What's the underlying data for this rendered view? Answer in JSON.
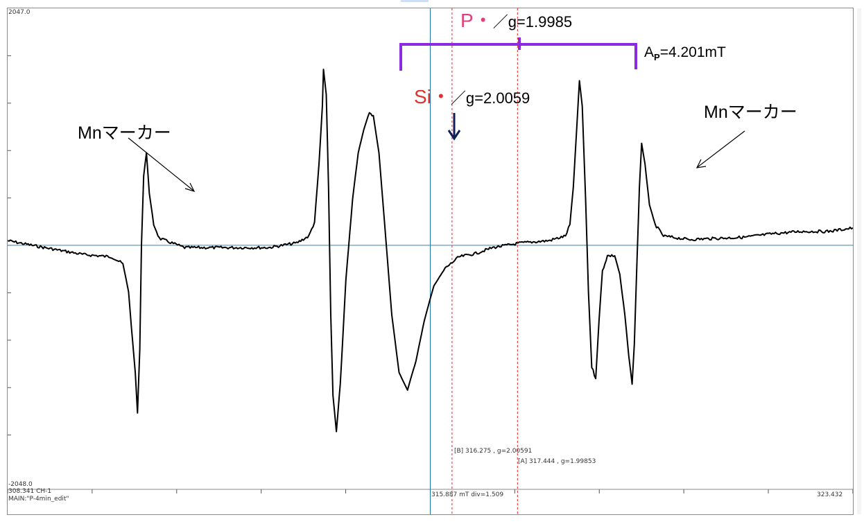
{
  "chart_data": {
    "type": "line",
    "xlim": [
      308.341,
      323.432
    ],
    "ylim": [
      -2048.0,
      2047.0
    ],
    "x_unit": "mT",
    "div": "1.509",
    "series": [
      {
        "color": "#000000",
        "points": [
          [
            308.341,
            40
          ],
          [
            309.0,
            -20
          ],
          [
            309.7,
            -80
          ],
          [
            310.2,
            -100
          ],
          [
            310.4,
            -160
          ],
          [
            310.5,
            -400
          ],
          [
            310.55,
            -700
          ],
          [
            310.62,
            -1100
          ],
          [
            310.66,
            -1450
          ],
          [
            310.7,
            -900
          ],
          [
            310.73,
            0
          ],
          [
            310.77,
            600
          ],
          [
            310.82,
            800
          ],
          [
            310.87,
            450
          ],
          [
            310.95,
            180
          ],
          [
            311.05,
            60
          ],
          [
            311.5,
            -20
          ],
          [
            312.0,
            -20
          ],
          [
            312.5,
            -20
          ],
          [
            313.0,
            -20
          ],
          [
            313.5,
            20
          ],
          [
            313.72,
            80
          ],
          [
            313.82,
            200
          ],
          [
            313.9,
            700
          ],
          [
            313.96,
            1200
          ],
          [
            313.98,
            1520
          ],
          [
            314.03,
            1300
          ],
          [
            314.07,
            500
          ],
          [
            314.11,
            -600
          ],
          [
            314.15,
            -1300
          ],
          [
            314.21,
            -1610
          ],
          [
            314.28,
            -1200
          ],
          [
            314.38,
            -300
          ],
          [
            314.5,
            400
          ],
          [
            314.6,
            800
          ],
          [
            314.7,
            1000
          ],
          [
            314.8,
            1150
          ],
          [
            314.87,
            1120
          ],
          [
            314.97,
            800
          ],
          [
            315.07,
            200
          ],
          [
            315.2,
            -600
          ],
          [
            315.33,
            -1100
          ],
          [
            315.48,
            -1250
          ],
          [
            315.63,
            -1000
          ],
          [
            315.78,
            -650
          ],
          [
            315.95,
            -350
          ],
          [
            316.15,
            -200
          ],
          [
            316.4,
            -100
          ],
          [
            316.7,
            -70
          ],
          [
            317.0,
            -20
          ],
          [
            317.5,
            20
          ],
          [
            318.0,
            40
          ],
          [
            318.3,
            80
          ],
          [
            318.38,
            180
          ],
          [
            318.44,
            500
          ],
          [
            318.5,
            1000
          ],
          [
            318.55,
            1420
          ],
          [
            318.6,
            1200
          ],
          [
            318.66,
            400
          ],
          [
            318.71,
            -400
          ],
          [
            318.77,
            -1050
          ],
          [
            318.84,
            -1150
          ],
          [
            318.9,
            -650
          ],
          [
            318.96,
            -220
          ],
          [
            319.05,
            -90
          ],
          [
            319.18,
            -90
          ],
          [
            319.27,
            -250
          ],
          [
            319.36,
            -600
          ],
          [
            319.43,
            -950
          ],
          [
            319.49,
            -1200
          ],
          [
            319.53,
            -850
          ],
          [
            319.58,
            -100
          ],
          [
            319.62,
            500
          ],
          [
            319.66,
            880
          ],
          [
            319.72,
            700
          ],
          [
            319.8,
            350
          ],
          [
            319.9,
            180
          ],
          [
            320.05,
            80
          ],
          [
            320.5,
            50
          ],
          [
            321.0,
            60
          ],
          [
            321.5,
            70
          ],
          [
            322.0,
            100
          ],
          [
            322.5,
            120
          ],
          [
            323.0,
            120
          ],
          [
            323.432,
            150
          ]
        ]
      }
    ],
    "baseline_y": 0,
    "cursor_x": 315.887,
    "markers": [
      {
        "label": "[B]  316.275 , g=2.00591",
        "x": 316.275
      },
      {
        "label": "[A]  317.444 , g=1.99853",
        "x": 317.444
      }
    ],
    "ytick_step": 409.5,
    "xtick_step": 1.509,
    "x_min_label": "308.341  CH-1",
    "x_mid_label": "315.887  mT  div=1.509",
    "x_max_label": "323.432",
    "y_max_label": "2047.0",
    "y_min_label": "-2048.0",
    "footer": "MAIN:\"P-4min_edit\""
  },
  "annotations": {
    "p_radical": "P・",
    "p_g": "／g=1.9985",
    "ap_prefix": "A",
    "ap_sub": "P",
    "ap_value": "=4.201mT",
    "si_radical": "Si・",
    "si_g": "／g=2.0059",
    "mn_left": "Mnマーカー",
    "mn_right": "Mnマーカー"
  },
  "colors": {
    "curve": "#000000",
    "cursor": "#1a6fa3",
    "baseline": "#2f86b8",
    "marker_lines": "#e02020",
    "p_label": "#e0407a",
    "si_label": "#e03030",
    "bracket": "#8a2be2",
    "down_arrow": "#0b1f5a",
    "frame": "#8a8a8a"
  }
}
